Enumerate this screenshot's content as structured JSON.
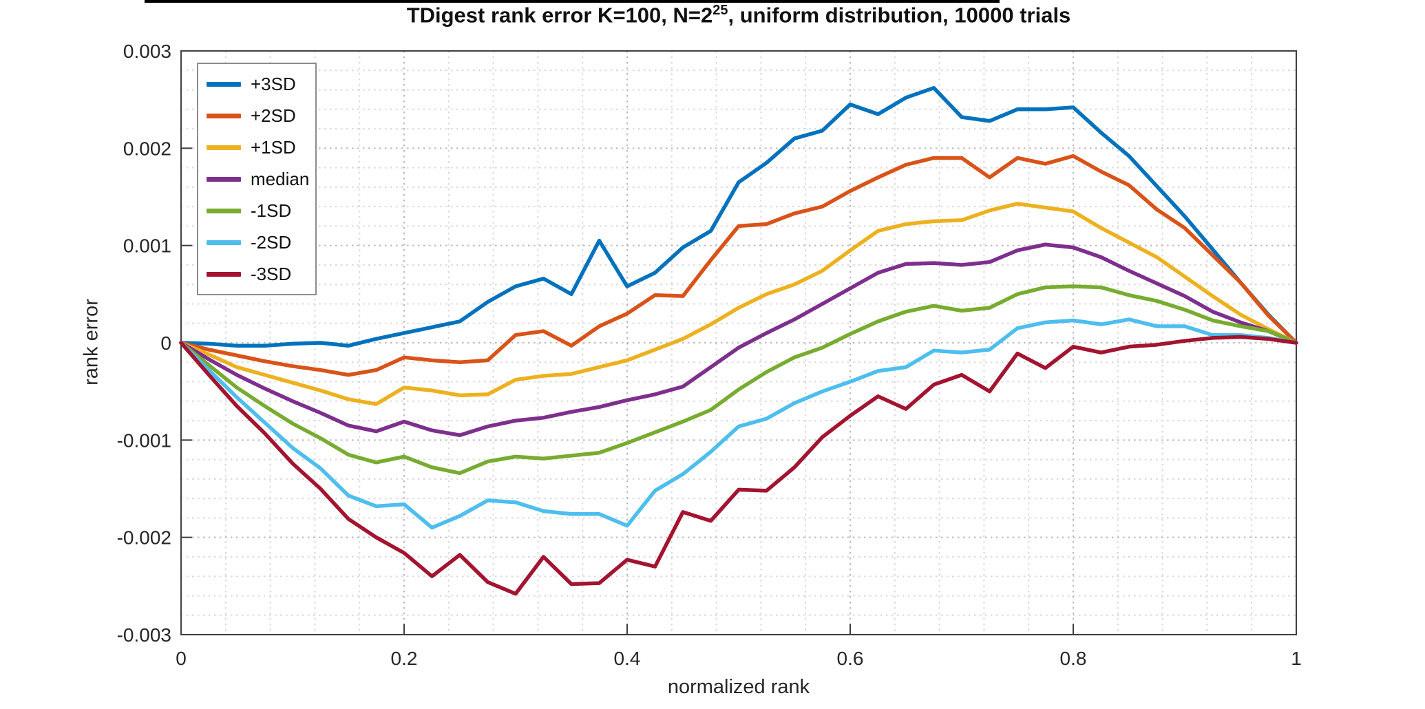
{
  "page": {
    "background": "#ffffff",
    "top_bar_color": "#000000"
  },
  "title": {
    "prefix": "TDigest rank error K=100, N=2",
    "exponent": "25",
    "suffix": ", uniform distribution, 10000 trials"
  },
  "axes": {
    "xlabel": "normalized rank",
    "ylabel": "rank error",
    "x_ticks": [
      {
        "label": "0",
        "value": 0
      },
      {
        "label": "0.2",
        "value": 0.2
      },
      {
        "label": "0.4",
        "value": 0.4
      },
      {
        "label": "0.6",
        "value": 0.6
      },
      {
        "label": "0.8",
        "value": 0.8
      },
      {
        "label": "1",
        "value": 1
      }
    ],
    "y_ticks": [
      {
        "label": "0.003",
        "value": 0.003
      },
      {
        "label": "0.002",
        "value": 0.002
      },
      {
        "label": "0.001",
        "value": 0.001
      },
      {
        "label": "0",
        "value": 0
      },
      {
        "label": "-0.001",
        "value": -0.001
      },
      {
        "label": "-0.002",
        "value": -0.002
      },
      {
        "label": "-0.003",
        "value": -0.003
      }
    ]
  },
  "legend": {
    "position": "top-left",
    "entries": [
      {
        "label": "+3SD",
        "color": "#0072BD"
      },
      {
        "label": "+2SD",
        "color": "#D95319"
      },
      {
        "label": "+1SD",
        "color": "#EDB120"
      },
      {
        "label": "median",
        "color": "#7E2F8E"
      },
      {
        "label": "-1SD",
        "color": "#77AC30"
      },
      {
        "label": "-2SD",
        "color": "#4DBEEE"
      },
      {
        "label": "-3SD",
        "color": "#A2142F"
      }
    ]
  },
  "chart_data": {
    "type": "line",
    "title": "TDigest rank error K=100, N=2^25, uniform distribution, 10000 trials",
    "xlabel": "normalized rank",
    "ylabel": "rank error",
    "xlim": [
      0,
      1
    ],
    "ylim": [
      -0.003,
      0.003
    ],
    "x_major_step": 0.2,
    "x_minor_step": 0.04,
    "y_major_step": 0.001,
    "y_minor_step": 0.0002,
    "grid": "on",
    "minor_grid": "on",
    "legend_position": "top-left",
    "x": [
      0,
      0.025,
      0.05,
      0.075,
      0.1,
      0.125,
      0.15,
      0.175,
      0.2,
      0.225,
      0.25,
      0.275,
      0.3,
      0.325,
      0.35,
      0.375,
      0.4,
      0.425,
      0.45,
      0.475,
      0.5,
      0.525,
      0.55,
      0.575,
      0.6,
      0.625,
      0.65,
      0.675,
      0.7,
      0.725,
      0.75,
      0.775,
      0.8,
      0.825,
      0.85,
      0.875,
      0.9,
      0.925,
      0.95,
      0.975,
      1
    ],
    "series": [
      {
        "name": "+3SD",
        "color": "#0072BD",
        "values": [
          0,
          -1e-05,
          -3e-05,
          -3e-05,
          -1e-05,
          0,
          -3e-05,
          4e-05,
          0.0001,
          0.00016,
          0.00022,
          0.00042,
          0.00058,
          0.00066,
          0.0005,
          0.00105,
          0.00058,
          0.00072,
          0.00098,
          0.00115,
          0.00165,
          0.00185,
          0.0021,
          0.00218,
          0.00245,
          0.00235,
          0.00252,
          0.00262,
          0.00232,
          0.00228,
          0.0024,
          0.0024,
          0.00242,
          0.00216,
          0.00192,
          0.00161,
          0.0013,
          0.00096,
          0.00062,
          0.00029,
          0
        ]
      },
      {
        "name": "+2SD",
        "color": "#D95319",
        "values": [
          0,
          -7e-05,
          -0.00013,
          -0.00019,
          -0.00024,
          -0.00028,
          -0.00033,
          -0.00028,
          -0.00015,
          -0.00018,
          -0.0002,
          -0.00018,
          8e-05,
          0.00012,
          -3e-05,
          0.00017,
          0.0003,
          0.00049,
          0.00048,
          0.00085,
          0.0012,
          0.00122,
          0.00133,
          0.0014,
          0.00156,
          0.0017,
          0.00183,
          0.0019,
          0.0019,
          0.0017,
          0.0019,
          0.00184,
          0.00192,
          0.00176,
          0.00162,
          0.00137,
          0.00118,
          0.0009,
          0.00062,
          0.00028,
          0
        ]
      },
      {
        "name": "+1SD",
        "color": "#EDB120",
        "values": [
          0,
          -0.00012,
          -0.00025,
          -0.00033,
          -0.00041,
          -0.00049,
          -0.00058,
          -0.00063,
          -0.00046,
          -0.00049,
          -0.00054,
          -0.00053,
          -0.00038,
          -0.00034,
          -0.00032,
          -0.00025,
          -0.00018,
          -7e-05,
          4e-05,
          0.00019,
          0.00036,
          0.0005,
          0.0006,
          0.00074,
          0.00095,
          0.00115,
          0.00122,
          0.00125,
          0.00126,
          0.00136,
          0.00143,
          0.00139,
          0.00135,
          0.00118,
          0.00103,
          0.00088,
          0.00068,
          0.00048,
          0.00029,
          0.00014,
          0
        ]
      },
      {
        "name": "median",
        "color": "#7E2F8E",
        "values": [
          0,
          -0.00017,
          -0.00033,
          -0.00047,
          -0.0006,
          -0.00072,
          -0.00085,
          -0.00091,
          -0.00081,
          -0.0009,
          -0.00095,
          -0.00086,
          -0.0008,
          -0.00077,
          -0.00071,
          -0.00066,
          -0.00059,
          -0.00053,
          -0.00045,
          -0.00025,
          -5e-05,
          0.0001,
          0.00024,
          0.0004,
          0.00056,
          0.00072,
          0.00081,
          0.00082,
          0.0008,
          0.00083,
          0.00095,
          0.00101,
          0.00098,
          0.00088,
          0.00074,
          0.00061,
          0.00048,
          0.00032,
          0.00021,
          0.00012,
          0
        ]
      },
      {
        "name": "-1SD",
        "color": "#77AC30",
        "values": [
          0,
          -0.00023,
          -0.00046,
          -0.00065,
          -0.00083,
          -0.00098,
          -0.00115,
          -0.00123,
          -0.00117,
          -0.00128,
          -0.00134,
          -0.00122,
          -0.00117,
          -0.00119,
          -0.00116,
          -0.00113,
          -0.00103,
          -0.00092,
          -0.00081,
          -0.00069,
          -0.00048,
          -0.0003,
          -0.00015,
          -5e-05,
          9e-05,
          0.00022,
          0.00032,
          0.00038,
          0.00033,
          0.00036,
          0.0005,
          0.00057,
          0.00058,
          0.00057,
          0.00049,
          0.00043,
          0.00034,
          0.00023,
          0.00017,
          0.00012,
          0
        ]
      },
      {
        "name": "-2SD",
        "color": "#4DBEEE",
        "values": [
          0,
          -0.00028,
          -0.00056,
          -0.00082,
          -0.00108,
          -0.00129,
          -0.00157,
          -0.00168,
          -0.00166,
          -0.0019,
          -0.00178,
          -0.00162,
          -0.00164,
          -0.00173,
          -0.00176,
          -0.00176,
          -0.00188,
          -0.00152,
          -0.00135,
          -0.00112,
          -0.00086,
          -0.00078,
          -0.00062,
          -0.0005,
          -0.0004,
          -0.00029,
          -0.00025,
          -8e-05,
          -0.0001,
          -7e-05,
          0.00015,
          0.00021,
          0.00023,
          0.00019,
          0.00024,
          0.00017,
          0.00017,
          8e-05,
          8e-05,
          5e-05,
          0
        ]
      },
      {
        "name": "-3SD",
        "color": "#A2142F",
        "values": [
          0,
          -0.00033,
          -0.00065,
          -0.00093,
          -0.00124,
          -0.0015,
          -0.00181,
          -0.002,
          -0.00216,
          -0.0024,
          -0.00218,
          -0.00246,
          -0.00258,
          -0.0022,
          -0.00248,
          -0.00247,
          -0.00223,
          -0.0023,
          -0.00174,
          -0.00183,
          -0.00151,
          -0.00152,
          -0.00128,
          -0.00097,
          -0.00075,
          -0.00055,
          -0.00068,
          -0.00043,
          -0.00033,
          -0.0005,
          -0.00011,
          -0.00026,
          -4e-05,
          -0.0001,
          -4e-05,
          -2e-05,
          2e-05,
          5e-05,
          6e-05,
          4e-05,
          0
        ]
      }
    ]
  }
}
